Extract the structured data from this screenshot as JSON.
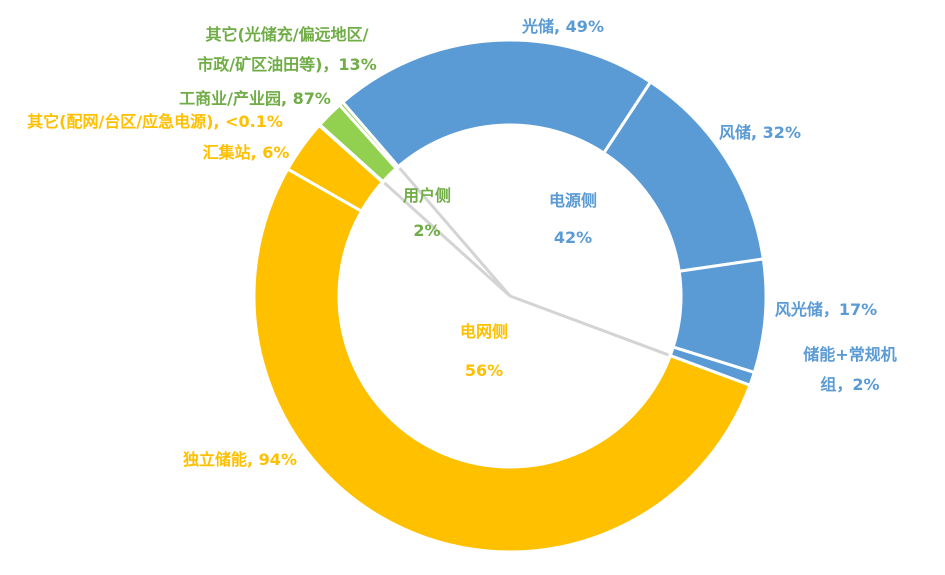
{
  "chart_data": {
    "type": "sunburst",
    "categories": [
      "电源侧",
      "电网侧",
      "用户侧"
    ],
    "values": [
      42,
      56,
      2
    ],
    "value_labels": [
      "42%",
      "56%",
      "2%"
    ],
    "colors": [
      "#5B9BD5",
      "#FFC000",
      "#92D050"
    ],
    "text_colors": [
      "#5B9BD5",
      "#FFC000",
      "#70AD47"
    ],
    "children": [
      {
        "values": [
          49,
          32,
          17,
          2
        ],
        "value_labels": [
          "光储, 49%",
          "风储, 32%",
          "风光储，17%",
          "储能+常规机组，2%"
        ]
      },
      {
        "values": [
          94,
          6,
          0.1
        ],
        "value_labels": [
          "独立储能, 94%",
          "汇集站, 6%",
          "其它(配网/台区/应急电源), <0.1%"
        ]
      },
      {
        "values": [
          87,
          13
        ],
        "value_labels": [
          "工商业/产业园, 87%",
          "其它(光储充/偏远地区/\n市政/矿区油田等)，13%"
        ]
      }
    ]
  }
}
